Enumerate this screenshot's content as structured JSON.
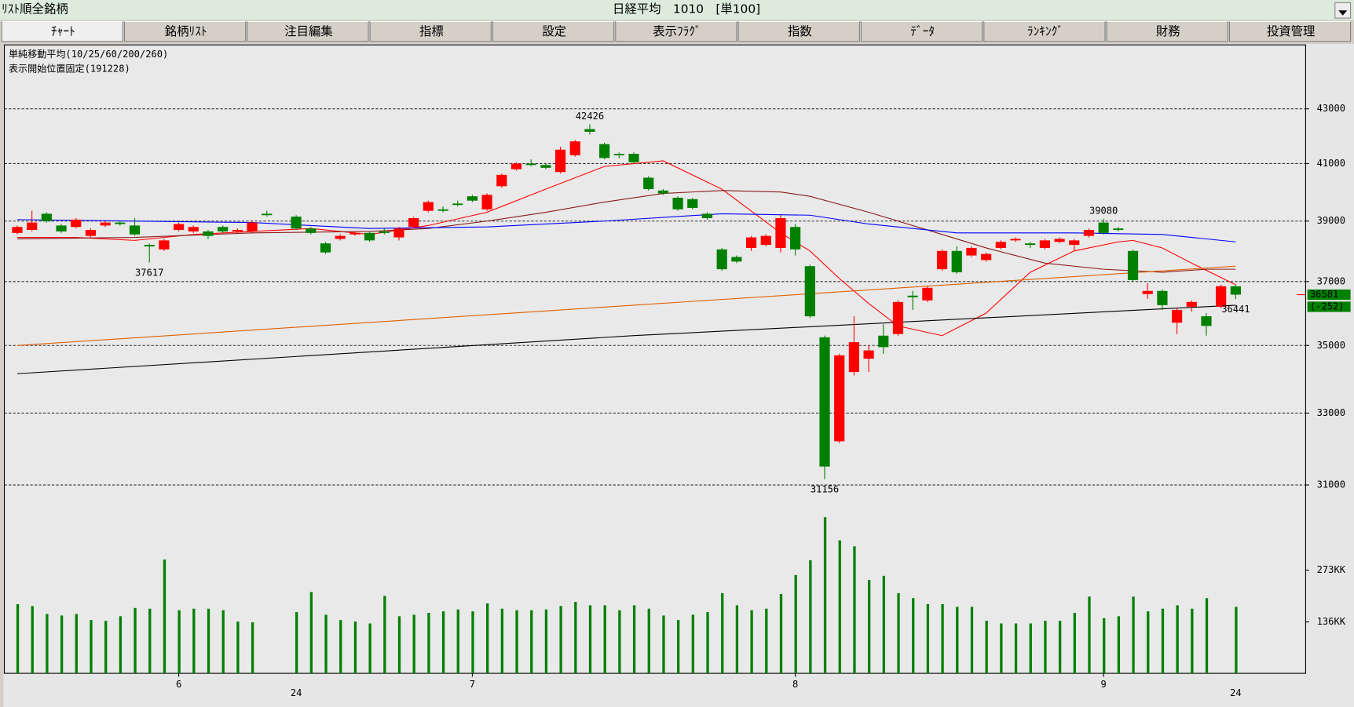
{
  "header": {
    "list": "ﾘｽﾄ順全銘柄",
    "title": "日経平均　1010　[単100]"
  },
  "tabs": [
    "ﾁｬｰﾄ",
    "銘柄ﾘｽﾄ",
    "注目編集",
    "指標",
    "設定",
    "表示ﾌﾗｸﾞ",
    "指数",
    "ﾃﾞｰﾀ",
    "ﾗﾝｷﾝｸﾞ",
    "財務",
    "投資管理"
  ],
  "chart_data": {
    "type": "candlestick",
    "notes": [
      "単純移動平均(10/25/60/200/260)",
      "表示開始位置固定(191228)"
    ],
    "open": [
      38600,
      38700,
      39250,
      38850,
      38800,
      38500,
      38850,
      38950,
      38850,
      38200,
      38050,
      38700,
      38650,
      38650,
      38800,
      38650,
      38650,
      39250,
      null,
      39150,
      38750,
      38250,
      38400,
      38550,
      38600,
      38650,
      38450,
      38800,
      39350,
      39400,
      39600,
      39850,
      39400,
      40200,
      40800,
      41000,
      40950,
      40700,
      41300,
      42250,
      41700,
      41350,
      41350,
      40500,
      40050,
      39800,
      39750,
      39250,
      38050,
      37800,
      38100,
      38200,
      38100,
      38800,
      37500,
      35250,
      32200,
      34200,
      34600,
      35300,
      35350,
      36550,
      36400,
      37400,
      38000,
      37850,
      37700,
      38100,
      38350,
      38250,
      38100,
      38300,
      38200,
      38500,
      38950,
      38750,
      38000,
      36600,
      36700,
      35700,
      36200,
      35900,
      36200,
      36850
    ],
    "high": [
      38850,
      39350,
      39300,
      38900,
      39100,
      38750,
      39000,
      39000,
      39100,
      38250,
      38400,
      38950,
      38850,
      38700,
      38850,
      38750,
      39000,
      39350,
      null,
      39200,
      38800,
      38300,
      38550,
      38650,
      38650,
      38750,
      38800,
      39150,
      39700,
      39500,
      39700,
      39900,
      39950,
      40650,
      41050,
      41150,
      41000,
      41600,
      41850,
      42426,
      41750,
      41400,
      41400,
      40550,
      40100,
      39850,
      39800,
      39300,
      38100,
      37850,
      38500,
      38550,
      39200,
      38900,
      37550,
      35300,
      34750,
      35900,
      35000,
      35650,
      36400,
      36700,
      36850,
      38050,
      38150,
      38150,
      37950,
      38350,
      38450,
      38300,
      38400,
      38450,
      38400,
      38750,
      39080,
      38800,
      38050,
      36950,
      36750,
      36150,
      36400,
      36000,
      36900,
      36900
    ],
    "low": [
      38550,
      38650,
      38950,
      38600,
      38750,
      38450,
      38800,
      38850,
      38500,
      37617,
      38000,
      38650,
      38600,
      38400,
      38600,
      38600,
      38600,
      39150,
      null,
      38700,
      38550,
      37900,
      38350,
      38500,
      38300,
      38550,
      38350,
      38750,
      39300,
      39300,
      39500,
      39650,
      39350,
      40150,
      40750,
      40900,
      40800,
      40650,
      41250,
      42050,
      41150,
      41200,
      41000,
      40050,
      39900,
      39350,
      39400,
      39050,
      37350,
      37600,
      38000,
      38150,
      37950,
      37850,
      35850,
      31156,
      32150,
      34100,
      34200,
      34750,
      35300,
      36100,
      36350,
      37350,
      37250,
      37800,
      37650,
      38050,
      38300,
      38100,
      38050,
      38250,
      38000,
      38450,
      38550,
      38650,
      37000,
      36450,
      36100,
      35350,
      36050,
      35300,
      36150,
      36441
    ],
    "close": [
      38800,
      38950,
      39000,
      38650,
      39050,
      38700,
      38950,
      38900,
      38550,
      38150,
      38350,
      38900,
      38800,
      38500,
      38650,
      38700,
      38950,
      39200,
      null,
      38750,
      38600,
      37950,
      38500,
      38600,
      38350,
      38600,
      38750,
      39100,
      39650,
      39350,
      39550,
      39700,
      39900,
      40600,
      41000,
      40950,
      40850,
      41500,
      41800,
      42150,
      41200,
      41300,
      41050,
      40100,
      39950,
      39400,
      39450,
      39100,
      37400,
      37650,
      38450,
      38500,
      39100,
      38050,
      35900,
      31500,
      34700,
      35100,
      34850,
      34950,
      36350,
      36500,
      36800,
      38000,
      37300,
      38100,
      37900,
      38300,
      38400,
      38200,
      38350,
      38400,
      38350,
      38700,
      38600,
      38700,
      37050,
      36700,
      36250,
      36100,
      36350,
      35600,
      36850,
      36581
    ],
    "up_color": "#ff0000",
    "down_color": "#008000",
    "ylim": [
      30350,
      44850
    ],
    "log_scale": true,
    "yticks": [
      31000,
      33000,
      35000,
      37000,
      39000,
      41000,
      43000
    ],
    "grid": true,
    "xticks": [
      {
        "value": 11,
        "label": "6"
      },
      {
        "value": 31,
        "label": "7"
      },
      {
        "value": 53,
        "label": "8"
      },
      {
        "value": 74,
        "label": "9"
      }
    ],
    "year_ticks": [
      {
        "value": 19,
        "label": "24"
      },
      {
        "value": 83,
        "label": "24"
      }
    ],
    "moving_averages": [
      {
        "color": "#ff0000",
        "x": [
          0,
          4,
          8,
          12,
          16,
          20,
          24,
          28,
          32,
          36,
          40,
          44,
          48,
          52,
          54,
          56,
          58,
          60,
          63,
          66,
          69,
          72,
          75,
          76,
          78,
          80,
          83
        ],
        "values": [
          38450,
          38450,
          38350,
          38550,
          38650,
          38750,
          38550,
          38850,
          39300,
          40100,
          40900,
          41100,
          40100,
          38600,
          38000,
          37100,
          36300,
          35600,
          35300,
          36000,
          37300,
          38000,
          38300,
          38350,
          38100,
          37600,
          36900
        ]
      },
      {
        "color": "#8b1a1a",
        "x": [
          0,
          8,
          16,
          24,
          28,
          32,
          36,
          40,
          44,
          48,
          52,
          54,
          58,
          62,
          66,
          70,
          74,
          78,
          81,
          83
        ],
        "values": [
          38400,
          38450,
          38600,
          38650,
          38750,
          39000,
          39300,
          39650,
          39950,
          40050,
          40000,
          39850,
          39300,
          38700,
          38100,
          37600,
          37400,
          37300,
          37400,
          37400
        ]
      },
      {
        "color": "#0000ff",
        "x": [
          0,
          16,
          24,
          32,
          40,
          48,
          54,
          58,
          64,
          72,
          78,
          83
        ],
        "values": [
          39050,
          38950,
          38750,
          38800,
          39000,
          39250,
          39200,
          38900,
          38600,
          38600,
          38550,
          38300
        ]
      },
      {
        "color": "#e06000",
        "x": [
          0,
          42,
          83
        ],
        "values": [
          35000,
          36250,
          37500
        ]
      },
      {
        "color": "#000000",
        "x": [
          0,
          42,
          83
        ],
        "values": [
          34150,
          35300,
          36250
        ]
      }
    ],
    "annotations": [
      {
        "x": 39,
        "value": 42426,
        "color": "#ff0000"
      },
      {
        "x": 9,
        "value": 37617,
        "color": "#008000"
      },
      {
        "x": 55,
        "value": 31156,
        "color": "#008000"
      },
      {
        "x": 74,
        "value": 39080,
        "color": "#ff0000"
      },
      {
        "x": 83,
        "value": 36441,
        "color": "#008000"
      }
    ],
    "last": {
      "value": 36581,
      "change": {
        "value": -252,
        "label": "(-252)"
      },
      "color": "#008000"
    },
    "volume": {
      "color": "#008000",
      "ylim": [
        0,
        434
      ],
      "yticks": [
        {
          "value": 136,
          "label": "136KK"
        },
        {
          "value": 273,
          "label": "273KK"
        }
      ],
      "values": [
        183,
        178,
        157,
        153,
        157,
        141,
        139,
        151,
        173,
        171,
        301,
        167,
        171,
        171,
        167,
        137,
        135,
        null,
        null,
        162,
        215,
        155,
        141,
        137,
        132,
        205,
        151,
        155,
        160,
        164,
        169,
        164,
        185,
        171,
        167,
        167,
        169,
        178,
        189,
        180,
        180,
        167,
        180,
        171,
        153,
        141,
        155,
        162,
        212,
        180,
        167,
        171,
        210,
        260,
        299,
        413,
        352,
        336,
        247,
        258,
        212,
        199,
        183,
        183,
        176,
        176,
        139,
        132,
        132,
        132,
        139,
        139,
        160,
        203,
        146,
        151,
        203,
        164,
        171,
        180,
        171,
        199,
        null,
        176
      ]
    }
  }
}
